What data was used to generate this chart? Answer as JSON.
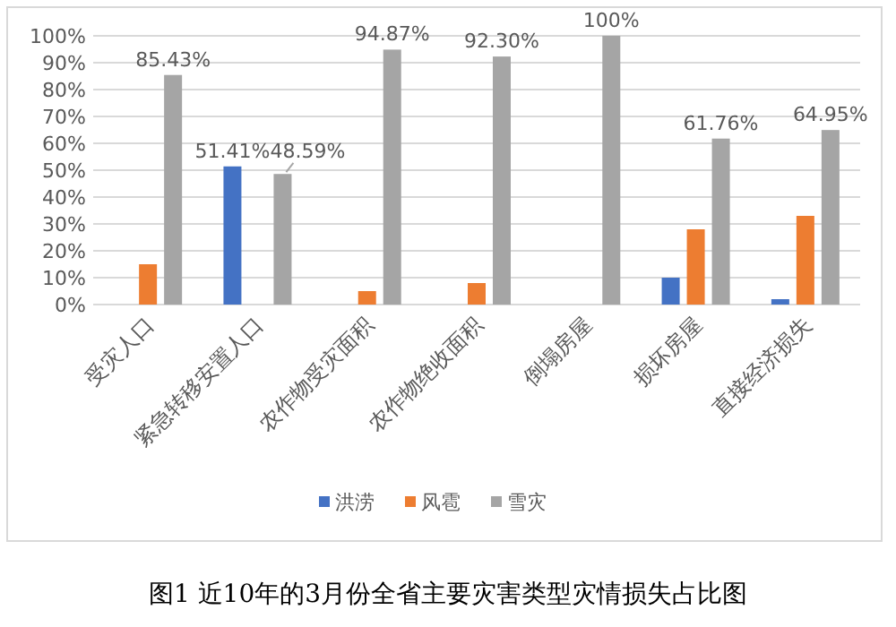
{
  "chart_data": {
    "type": "bar",
    "title": "图1 近10年的3月份全省主要灾害类型灾情损失占比图",
    "categories": [
      "受灾人口",
      "紧急转移安置人口",
      "农作物受灾面积",
      "农作物绝收面积",
      "倒塌房屋",
      "损坏房屋",
      "直接经济损失"
    ],
    "series": [
      {
        "name": "洪涝",
        "color": "#4472c4",
        "values": [
          0,
          51.41,
          0,
          0,
          0,
          10,
          2
        ],
        "value_labels": [
          null,
          "51.41%",
          null,
          null,
          null,
          null,
          null
        ]
      },
      {
        "name": "风雹",
        "color": "#ed7d31",
        "values": [
          15,
          0,
          5,
          8,
          0,
          28,
          33
        ]
      },
      {
        "name": "雪灾",
        "color": "#a5a5a5",
        "values": [
          85.43,
          48.59,
          94.87,
          92.3,
          100,
          61.76,
          64.95
        ],
        "value_labels": [
          "85.43%",
          "48.59%",
          "94.87%",
          "92.30%",
          "100%",
          "61.76%",
          "64.95%"
        ]
      }
    ],
    "ylim": [
      0,
      100
    ],
    "yticks": [
      {
        "value": 0,
        "label": "0%"
      },
      {
        "value": 10,
        "label": "10%"
      },
      {
        "value": 20,
        "label": "20%"
      },
      {
        "value": 30,
        "label": "30%"
      },
      {
        "value": 40,
        "label": "40%"
      },
      {
        "value": 50,
        "label": "50%"
      },
      {
        "value": 60,
        "label": "60%"
      },
      {
        "value": 70,
        "label": "70%"
      },
      {
        "value": 80,
        "label": "80%"
      },
      {
        "value": 90,
        "label": "90%"
      },
      {
        "value": 100,
        "label": "100%"
      }
    ],
    "grid": "y",
    "legend": "bottom"
  }
}
